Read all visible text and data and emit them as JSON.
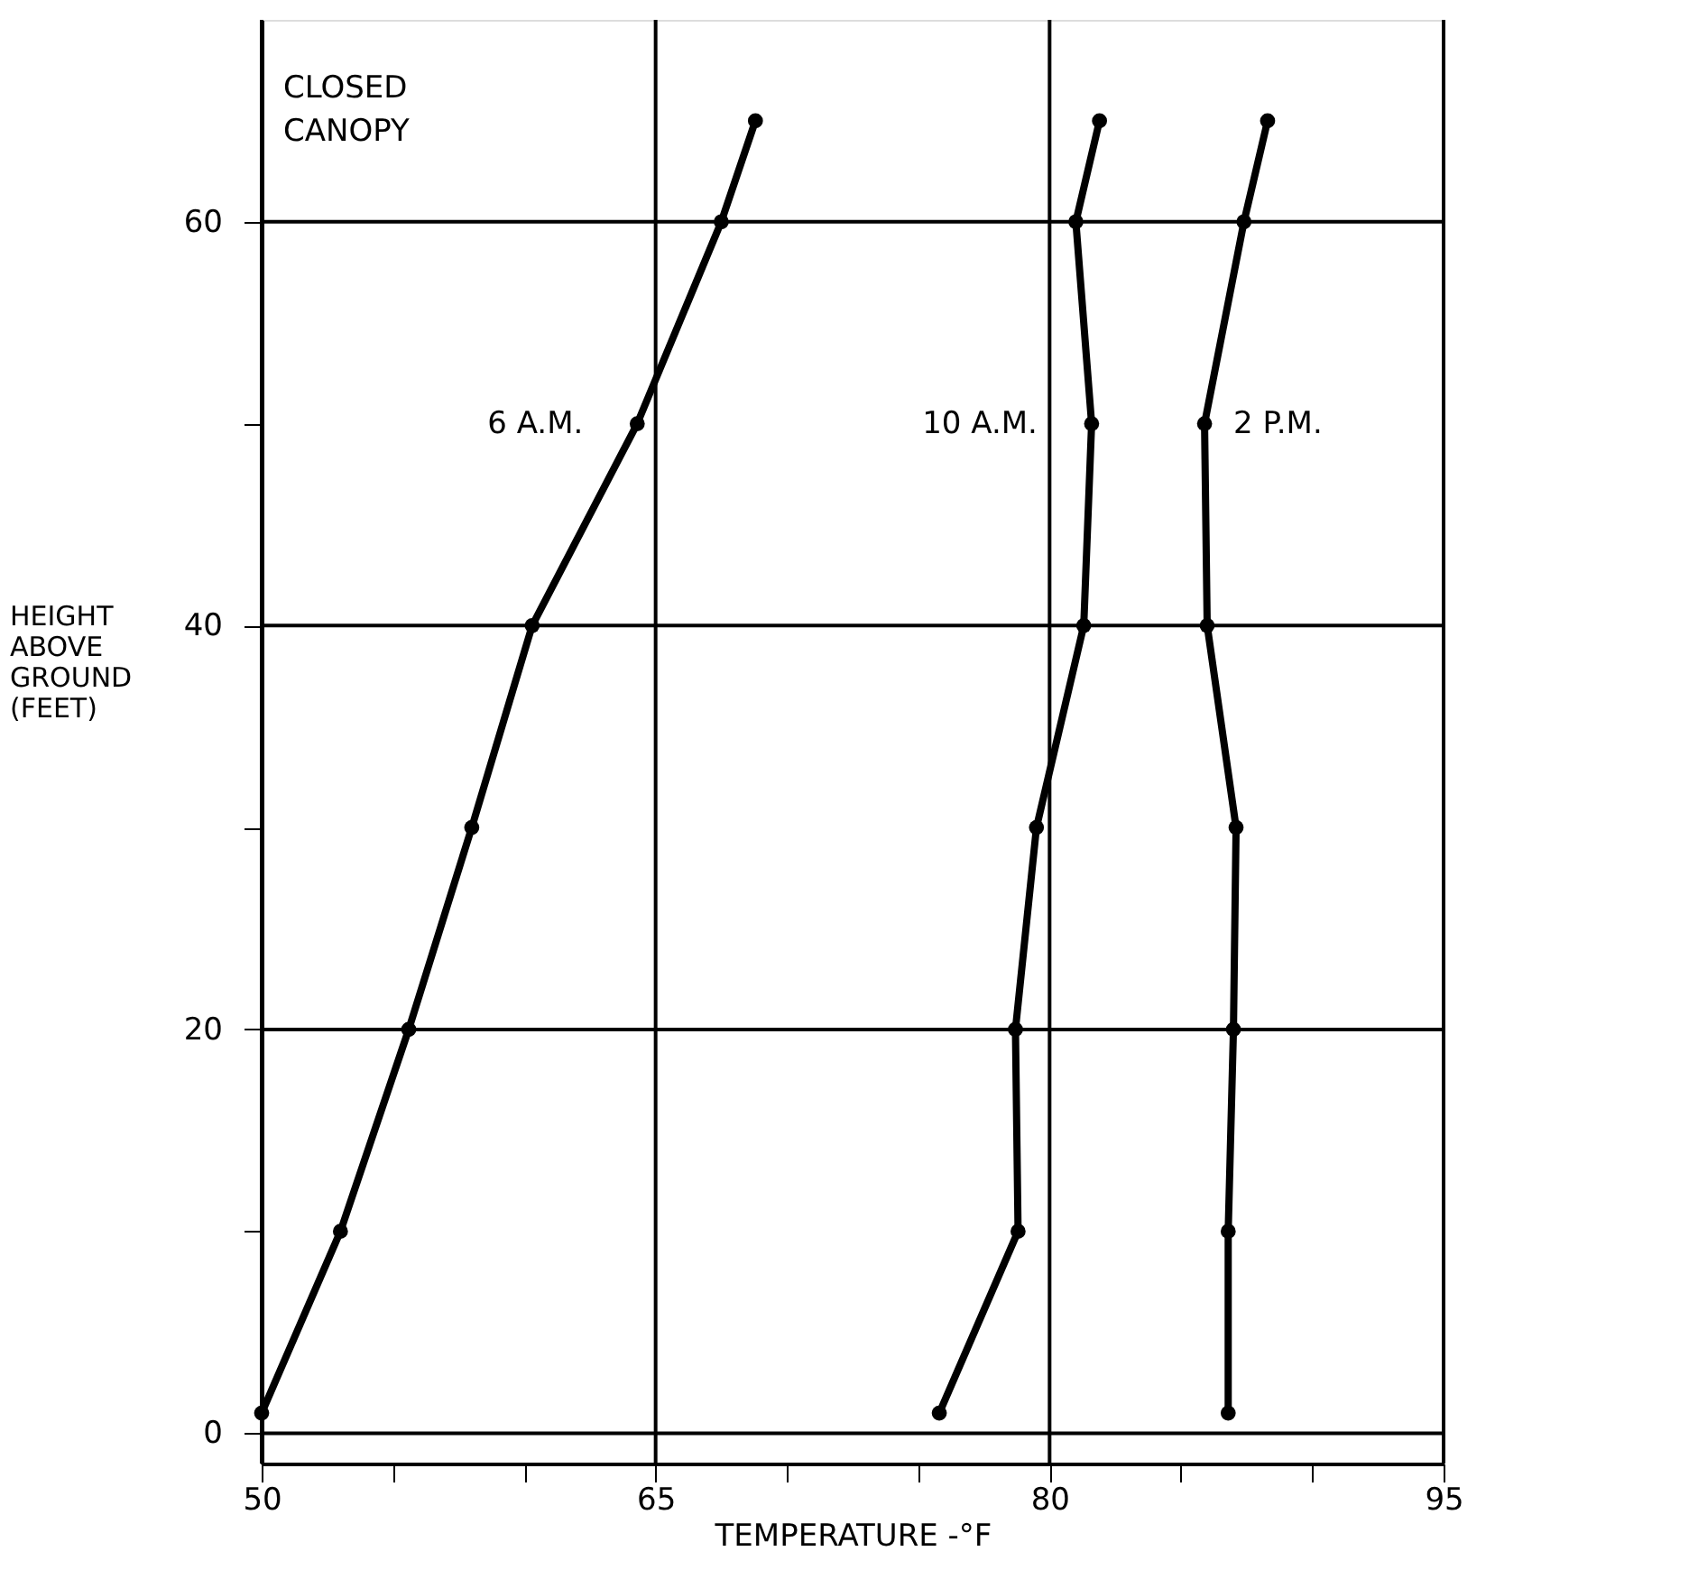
{
  "chart_data": {
    "type": "line",
    "xlabel": "TEMPERATURE -°F",
    "ylabel": "HEIGHT\nABOVE\nGROUND\n(FEET)",
    "xlim": [
      50,
      95
    ],
    "ylim": [
      -1.5,
      70
    ],
    "xticks": [
      50,
      {
        "value": 55,
        "label": null
      },
      {
        "value": 60,
        "label": null
      },
      65,
      {
        "value": 70,
        "label": null
      },
      {
        "value": 75,
        "label": null
      },
      80,
      {
        "value": 85,
        "label": null
      },
      {
        "value": 90,
        "label": null
      },
      95
    ],
    "yticks": [
      0,
      {
        "value": 10,
        "label": null
      },
      20,
      {
        "value": 30,
        "label": null
      },
      40,
      {
        "value": 50,
        "label": null
      },
      60
    ],
    "grid": true,
    "marker": "circle",
    "line_style": "solid",
    "annotations": [
      "CLOSED\nCANOPY"
    ],
    "series": [
      {
        "name": "6 A.M.",
        "color": "#000000",
        "x": [
          50.0,
          53.0,
          55.6,
          58.0,
          60.3,
          64.3,
          67.5,
          68.8
        ],
        "values": [
          1,
          10,
          20,
          30,
          40,
          50,
          60,
          65
        ]
      },
      {
        "name": "10 A.M.",
        "color": "#000000",
        "x": [
          75.8,
          78.8,
          78.7,
          79.5,
          81.3,
          81.6,
          81.0,
          81.9
        ],
        "values": [
          1,
          10,
          20,
          30,
          40,
          50,
          60,
          65
        ]
      },
      {
        "name": "2 P.M.",
        "color": "#000000",
        "x": [
          86.8,
          86.8,
          87.0,
          87.1,
          86.0,
          85.9,
          87.4,
          88.3
        ],
        "values": [
          1,
          10,
          20,
          30,
          40,
          50,
          60,
          65
        ]
      }
    ]
  }
}
